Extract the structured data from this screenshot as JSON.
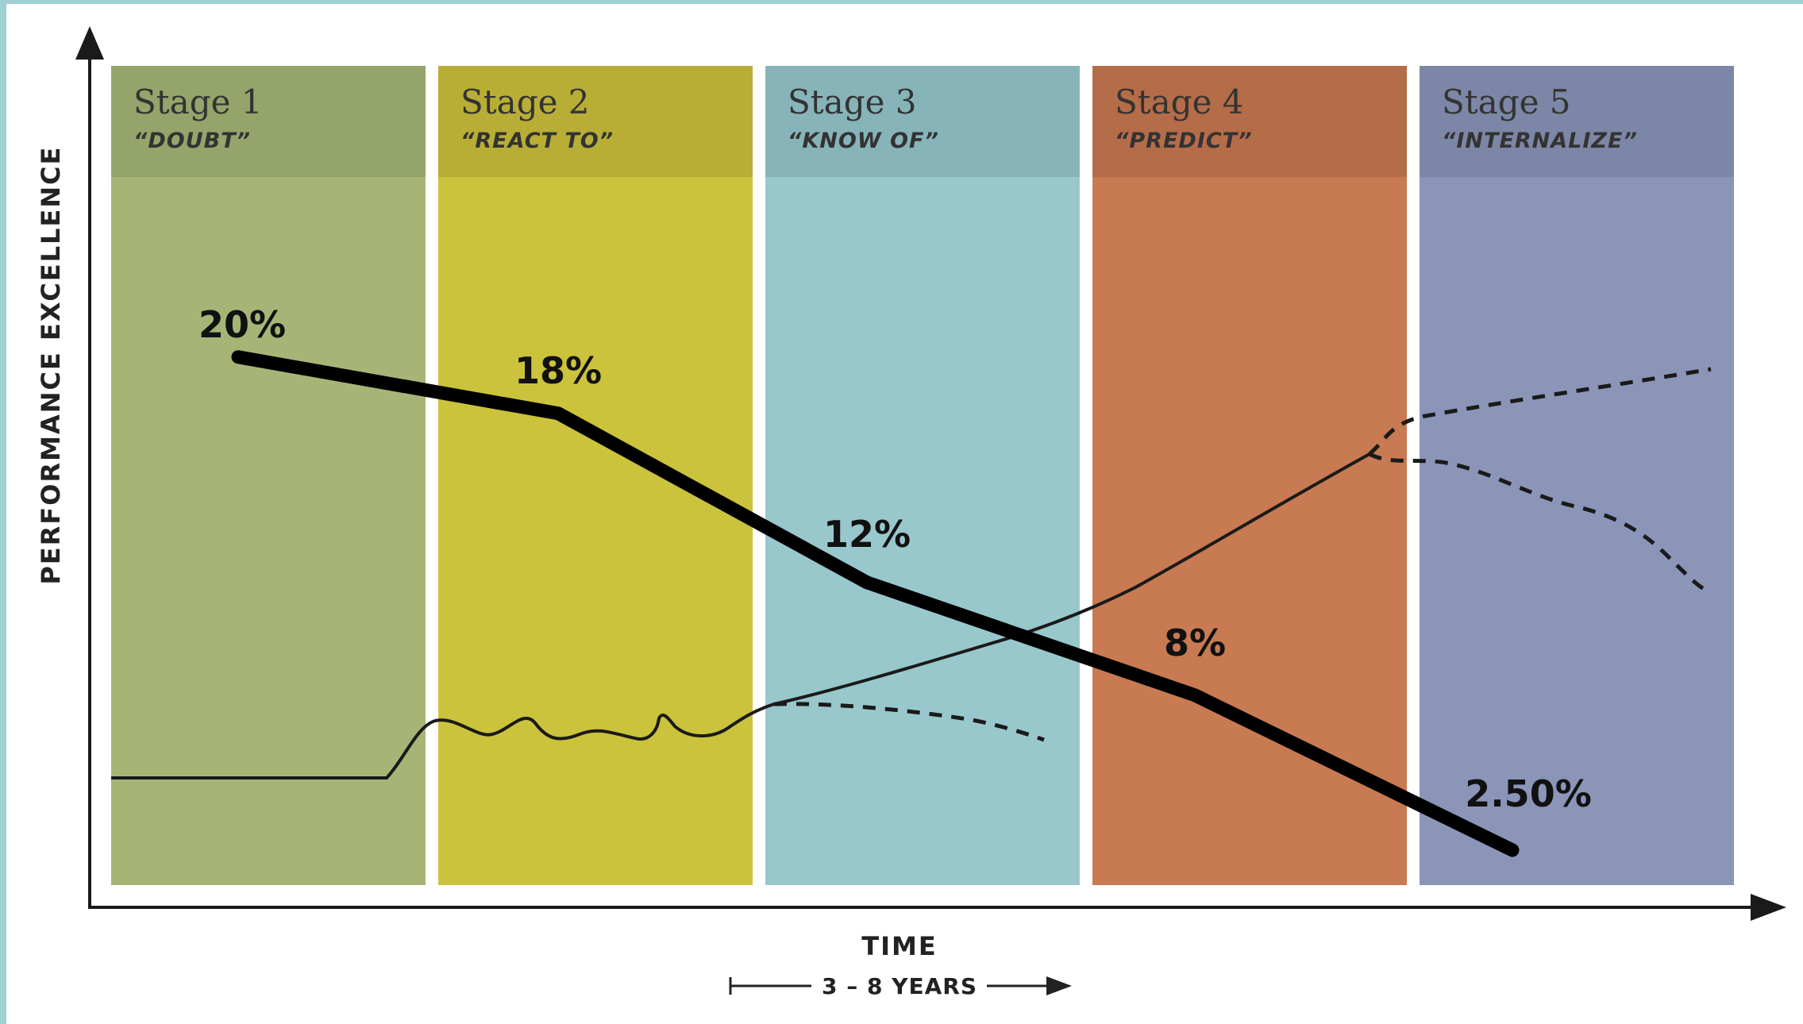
{
  "chart_data": {
    "type": "line",
    "ylabel": "PERFORMANCE EXCELLENCE",
    "xlabel": "TIME",
    "duration_label": "3 – 8 YEARS",
    "stages": [
      {
        "title": "Stage 1",
        "subtitle": "“DOUBT”",
        "color": "#a6b576",
        "header_color": "#95a46a"
      },
      {
        "title": "Stage 2",
        "subtitle": "“REACT TO”",
        "color": "#cbc33c",
        "header_color": "#b8ae35"
      },
      {
        "title": "Stage 3",
        "subtitle": "“KNOW OF”",
        "color": "#99c8cc",
        "header_color": "#87b4b8"
      },
      {
        "title": "Stage 4",
        "subtitle": "“PREDICT”",
        "color": "#c87a52",
        "header_color": "#b56c48"
      },
      {
        "title": "Stage 5",
        "subtitle": "“INTERNALIZE”",
        "color": "#8b95b8",
        "header_color": "#7c86a6"
      }
    ],
    "main_series": {
      "values": [
        20,
        18,
        12,
        8,
        2.5
      ],
      "labels": [
        "20%",
        "18%",
        "12%",
        "8%",
        "2.50%"
      ]
    },
    "performance_curve": {
      "style": "solid",
      "branches": [
        "dashed-stage3-decline",
        "dashed-stage5-rise",
        "dashed-stage5-decline"
      ]
    }
  }
}
